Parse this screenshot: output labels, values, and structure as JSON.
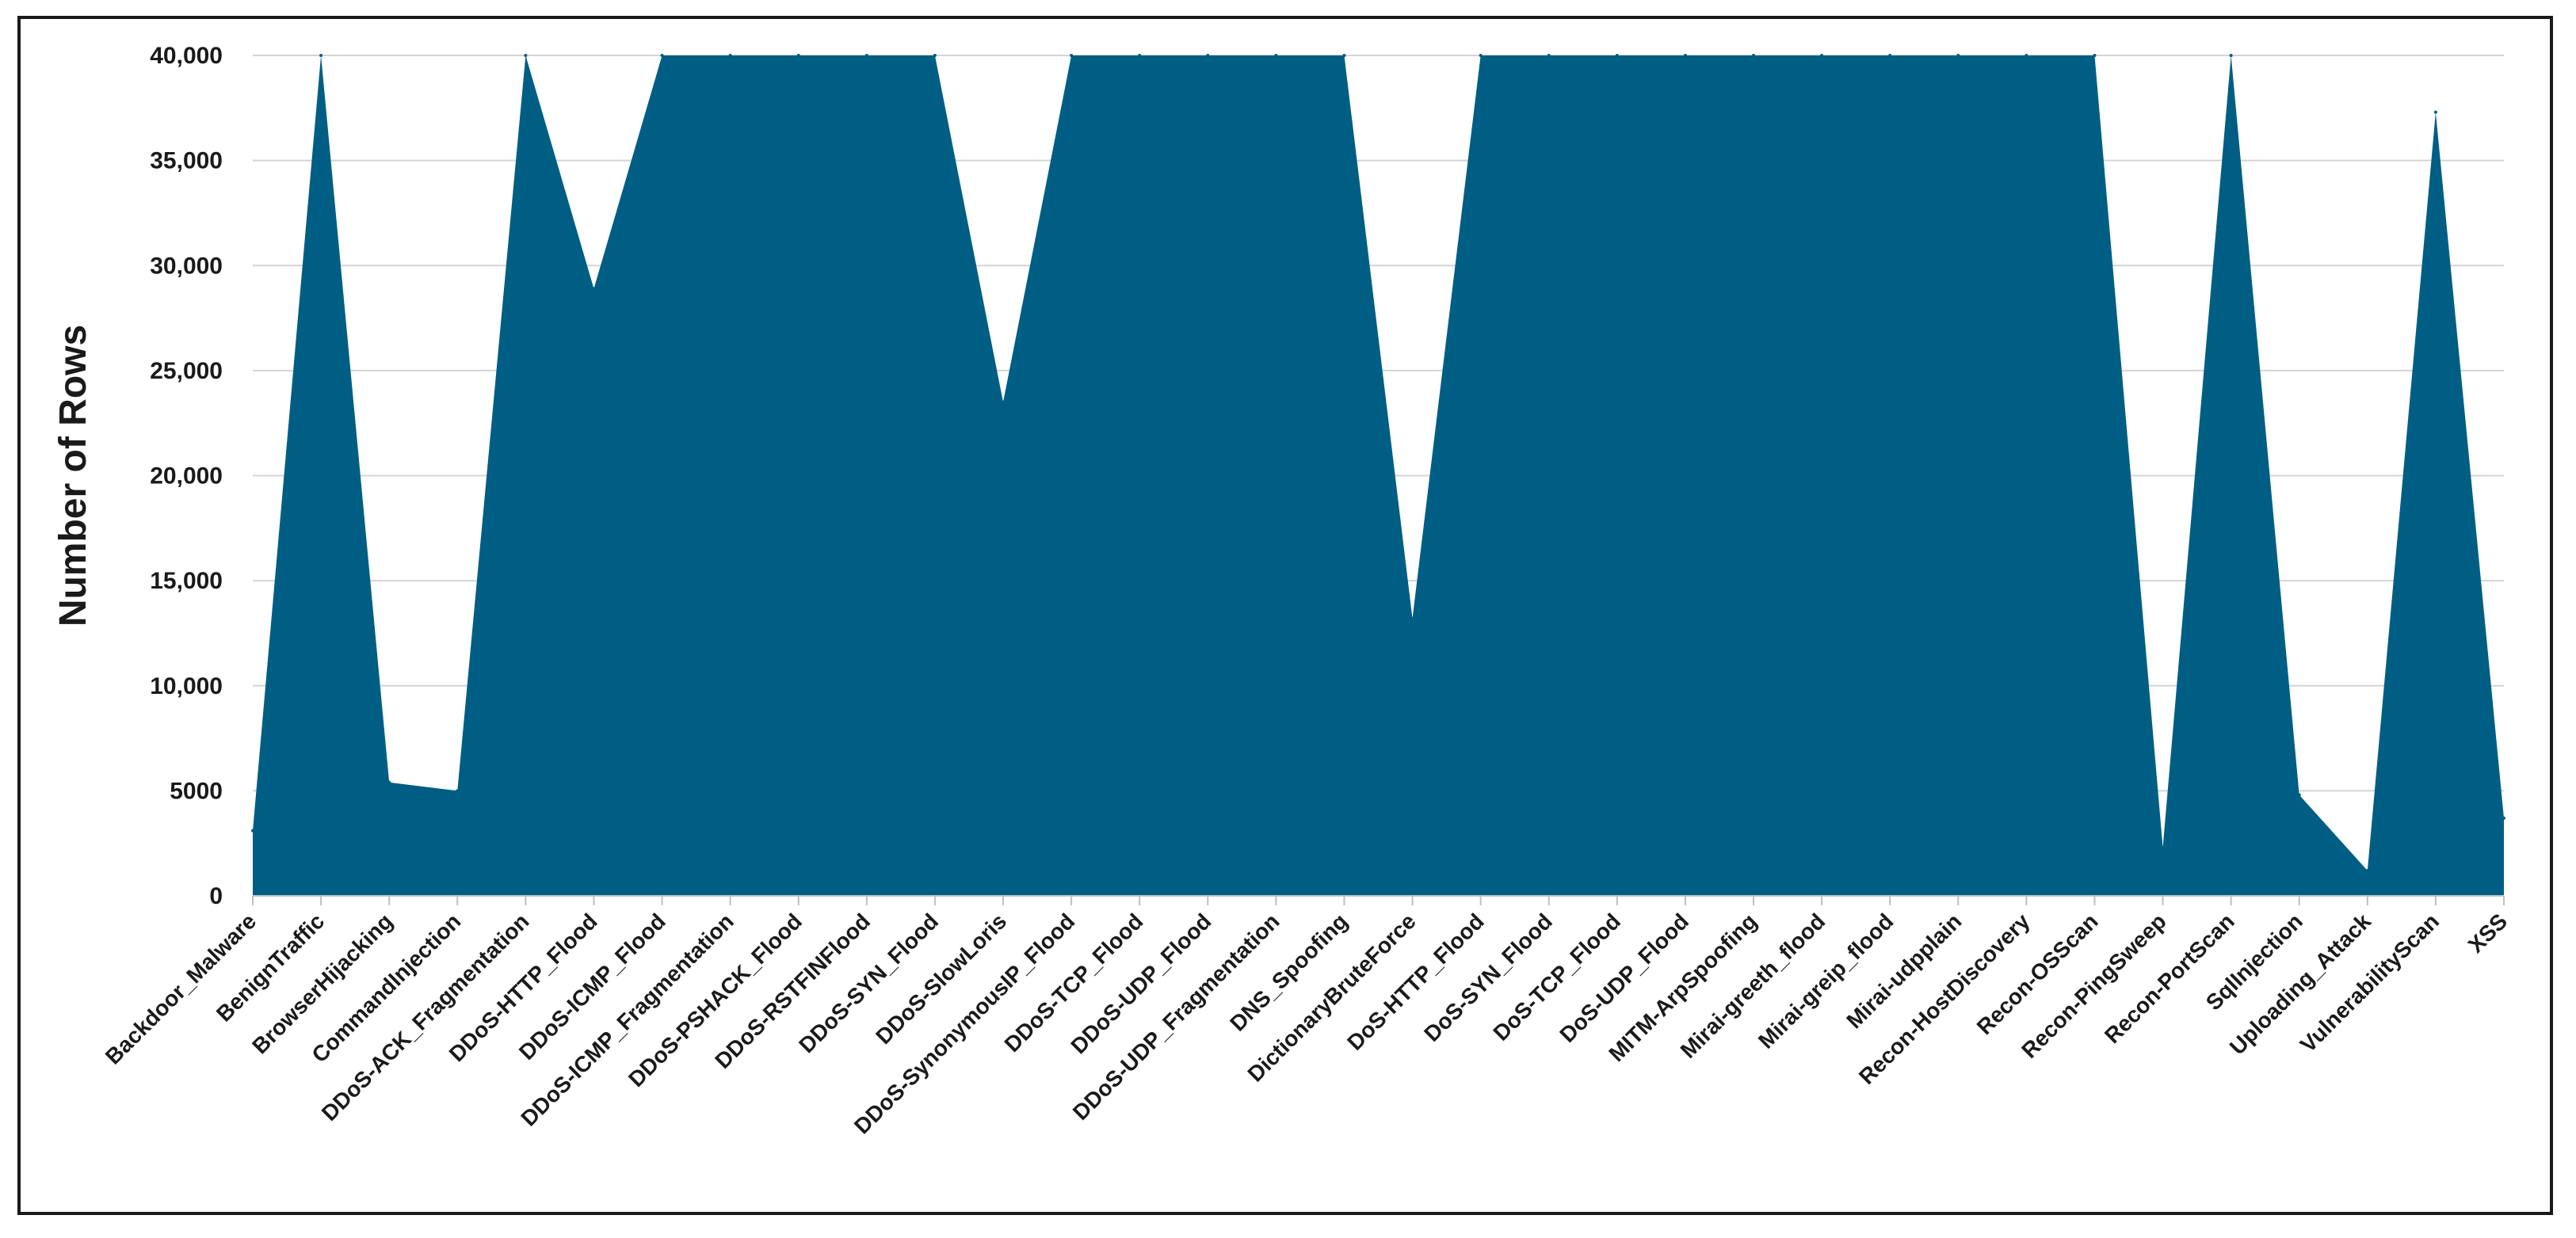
{
  "chart_data": {
    "type": "area",
    "title": "",
    "xlabel": "",
    "ylabel": "Number of Rows",
    "ylim": [
      0,
      40000
    ],
    "yticks": [
      0,
      5000,
      10000,
      15000,
      20000,
      25000,
      30000,
      35000,
      40000
    ],
    "ytick_labels": [
      "0",
      "5000",
      "10,000",
      "15,000",
      "20,000",
      "25,000",
      "30,000",
      "35,000",
      "40,000"
    ],
    "grid": true,
    "legend": "none",
    "fill_color": "#005e84",
    "categories": [
      "Backdoor_Malware",
      "BenignTraffic",
      "BrowserHijacking",
      "CommandInjection",
      "DDoS-ACK_Fragmentation",
      "DDoS-HTTP_Flood",
      "DDoS-ICMP_Flood",
      "DDoS-ICMP_Fragmentation",
      "DDoS-PSHACK_Flood",
      "DDoS-RSTFINFlood",
      "DDoS-SYN_Flood",
      "DDoS-SlowLoris",
      "DDoS-SynonymousIP_Flood",
      "DDoS-TCP_Flood",
      "DDoS-UDP_Flood",
      "DDoS-UDP_Fragmentation",
      "DNS_Spoofing",
      "DictionaryBruteForce",
      "DoS-HTTP_Flood",
      "DoS-SYN_Flood",
      "DoS-TCP_Flood",
      "DoS-UDP_Flood",
      "MITM-ArpSpoofing",
      "Mirai-greeth_flood",
      "Mirai-greip_flood",
      "Mirai-udpplain",
      "Recon-HostDiscovery",
      "Recon-OSScan",
      "Recon-PingSweep",
      "Recon-PortScan",
      "SqlInjection",
      "Uploading_Attack",
      "VulnerabilityScan",
      "XSS"
    ],
    "values": [
      3100,
      40000,
      5400,
      5000,
      40000,
      28900,
      40000,
      40000,
      40000,
      40000,
      40000,
      23500,
      40000,
      40000,
      40000,
      40000,
      40000,
      13200,
      40000,
      40000,
      40000,
      40000,
      40000,
      40000,
      40000,
      40000,
      40000,
      40000,
      2300,
      40000,
      4800,
      1200,
      37300,
      3700
    ]
  }
}
